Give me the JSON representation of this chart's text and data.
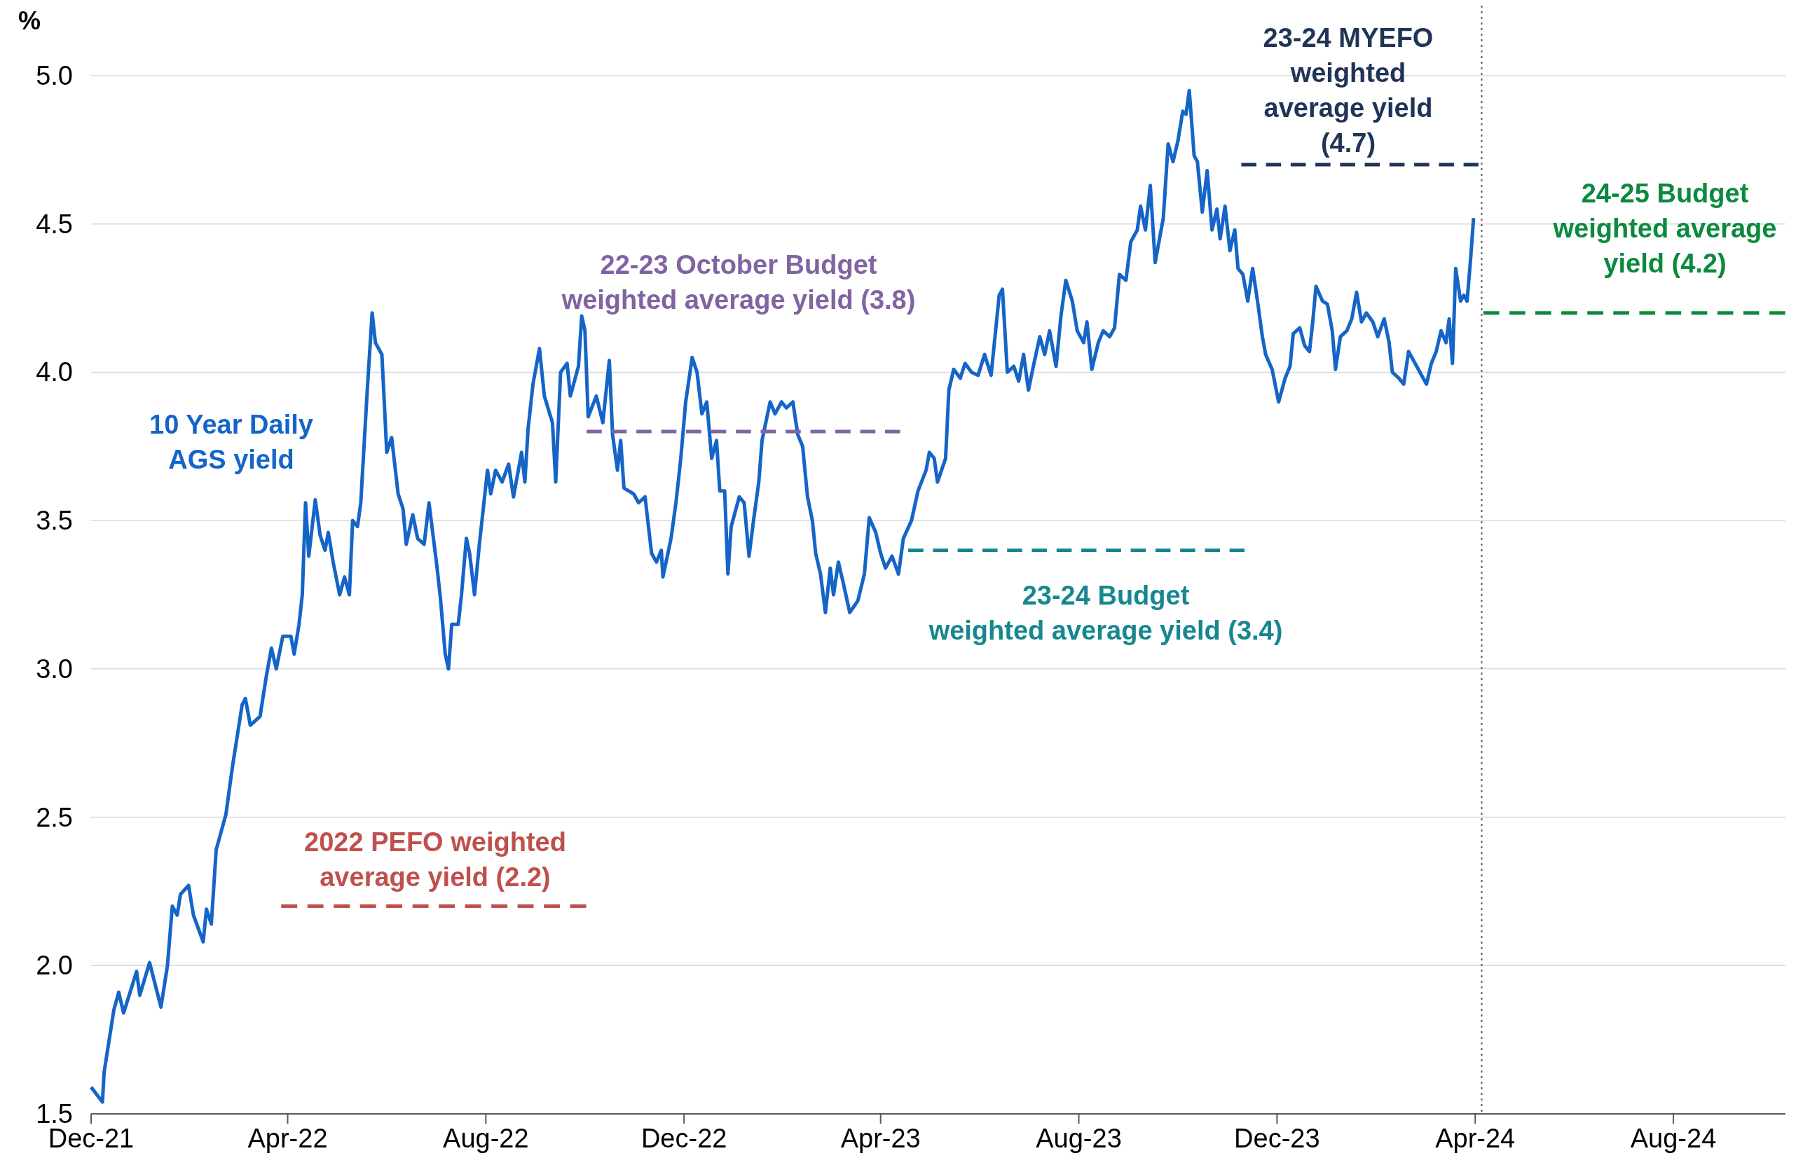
{
  "chart_data": {
    "type": "line",
    "ylabel": "%",
    "xlim": [
      "2021-12-01",
      "2024-10-09"
    ],
    "ylim": [
      1.5,
      5.0
    ],
    "xticks": [
      {
        "value": "2021-12-01",
        "label": "Dec-21"
      },
      {
        "value": "2022-04-01",
        "label": "Apr-22"
      },
      {
        "value": "2022-08-01",
        "label": "Aug-22"
      },
      {
        "value": "2022-12-01",
        "label": "Dec-22"
      },
      {
        "value": "2023-04-01",
        "label": "Apr-23"
      },
      {
        "value": "2023-08-01",
        "label": "Aug-23"
      },
      {
        "value": "2023-12-01",
        "label": "Dec-23"
      },
      {
        "value": "2024-04-01",
        "label": "Apr-24"
      },
      {
        "value": "2024-08-01",
        "label": "Aug-24"
      }
    ],
    "yticks": [
      {
        "value": 1.5,
        "label": "1.5"
      },
      {
        "value": 2.0,
        "label": "2.0"
      },
      {
        "value": 2.5,
        "label": "2.5"
      },
      {
        "value": 3.0,
        "label": "3.0"
      },
      {
        "value": 3.5,
        "label": "3.5"
      },
      {
        "value": 4.0,
        "label": "4.0"
      },
      {
        "value": 4.5,
        "label": "4.5"
      },
      {
        "value": 5.0,
        "label": "5.0"
      }
    ],
    "grid": "y",
    "ref_lines": [
      {
        "axis": "x",
        "value": "2024-04-05",
        "color": "#595959",
        "line_style": "dotted"
      }
    ],
    "series": [
      {
        "name": "10 Year Daily\nAGS yield",
        "color": "#1565c8",
        "line_style": "solid",
        "x": [
          "2021-12-01",
          "2021-12-08",
          "2021-12-09",
          "2021-12-15",
          "2021-12-18",
          "2021-12-21",
          "2021-12-29",
          "2021-12-31",
          "2022-01-06",
          "2022-01-13",
          "2022-01-17",
          "2022-01-20",
          "2022-01-23",
          "2022-01-25",
          "2022-01-30",
          "2022-02-02",
          "2022-02-08",
          "2022-02-10",
          "2022-02-13",
          "2022-02-16",
          "2022-02-22",
          "2022-02-26",
          "2022-03-04",
          "2022-03-06",
          "2022-03-09",
          "2022-03-15",
          "2022-03-19",
          "2022-03-22",
          "2022-03-25",
          "2022-03-29",
          "2022-04-03",
          "2022-04-05",
          "2022-04-08",
          "2022-04-10",
          "2022-04-12",
          "2022-04-14",
          "2022-04-18",
          "2022-04-21",
          "2022-04-24",
          "2022-04-26",
          "2022-04-29",
          "2022-05-03",
          "2022-05-06",
          "2022-05-09",
          "2022-05-11",
          "2022-05-14",
          "2022-05-16",
          "2022-05-20",
          "2022-05-23",
          "2022-05-25",
          "2022-05-29",
          "2022-06-01",
          "2022-06-04",
          "2022-06-08",
          "2022-06-11",
          "2022-06-13",
          "2022-06-17",
          "2022-06-20",
          "2022-06-24",
          "2022-06-27",
          "2022-07-02",
          "2022-07-04",
          "2022-07-07",
          "2022-07-09",
          "2022-07-11",
          "2022-07-15",
          "2022-07-17",
          "2022-07-20",
          "2022-07-22",
          "2022-07-25",
          "2022-07-28",
          "2022-08-02",
          "2022-08-04",
          "2022-08-07",
          "2022-08-11",
          "2022-08-15",
          "2022-08-18",
          "2022-08-23",
          "2022-08-25",
          "2022-08-27",
          "2022-08-30",
          "2022-09-03",
          "2022-09-06",
          "2022-09-11",
          "2022-09-13",
          "2022-09-16",
          "2022-09-20",
          "2022-09-22",
          "2022-09-27",
          "2022-09-29",
          "2022-10-01",
          "2022-10-03",
          "2022-10-08",
          "2022-10-12",
          "2022-10-16",
          "2022-10-18",
          "2022-10-21",
          "2022-10-23",
          "2022-10-25",
          "2022-10-31",
          "2022-11-03",
          "2022-11-07",
          "2022-11-11",
          "2022-11-14",
          "2022-11-17",
          "2022-11-18",
          "2022-11-23",
          "2022-11-26",
          "2022-11-29",
          "2022-12-02",
          "2022-12-06",
          "2022-12-09",
          "2022-12-12",
          "2022-12-15",
          "2022-12-18",
          "2022-12-21",
          "2022-12-23",
          "2022-12-26",
          "2022-12-28",
          "2022-12-30",
          "2023-01-04",
          "2023-01-07",
          "2023-01-10",
          "2023-01-13",
          "2023-01-16",
          "2023-01-18",
          "2023-01-23",
          "2023-01-26",
          "2023-01-30",
          "2023-02-02",
          "2023-02-06",
          "2023-02-09",
          "2023-02-12",
          "2023-02-15",
          "2023-02-18",
          "2023-02-20",
          "2023-02-23",
          "2023-02-26",
          "2023-03-01",
          "2023-03-03",
          "2023-03-06",
          "2023-03-09",
          "2023-03-13",
          "2023-03-18",
          "2023-03-22",
          "2023-03-25",
          "2023-03-29",
          "2023-04-01",
          "2023-04-04",
          "2023-04-08",
          "2023-04-12",
          "2023-04-15",
          "2023-04-20",
          "2023-04-24",
          "2023-04-29",
          "2023-05-01",
          "2023-05-04",
          "2023-05-06",
          "2023-05-11",
          "2023-05-13",
          "2023-05-16",
          "2023-05-20",
          "2023-05-23",
          "2023-05-27",
          "2023-05-31",
          "2023-06-04",
          "2023-06-08",
          "2023-06-13",
          "2023-06-15",
          "2023-06-18",
          "2023-06-22",
          "2023-06-25",
          "2023-06-28",
          "2023-07-01",
          "2023-07-04",
          "2023-07-08",
          "2023-07-11",
          "2023-07-14",
          "2023-07-18",
          "2023-07-21",
          "2023-07-24",
          "2023-07-28",
          "2023-07-31",
          "2023-08-04",
          "2023-08-06",
          "2023-08-09",
          "2023-08-13",
          "2023-08-16",
          "2023-08-20",
          "2023-08-23",
          "2023-08-26",
          "2023-08-30",
          "2023-09-02",
          "2023-09-06",
          "2023-09-08",
          "2023-09-11",
          "2023-09-14",
          "2023-09-17",
          "2023-09-20",
          "2023-09-22",
          "2023-09-25",
          "2023-09-28",
          "2023-10-01",
          "2023-10-04",
          "2023-10-06",
          "2023-10-08",
          "2023-10-11",
          "2023-10-13",
          "2023-10-16",
          "2023-10-19",
          "2023-10-22",
          "2023-10-25",
          "2023-10-27",
          "2023-10-30",
          "2023-11-02",
          "2023-11-05",
          "2023-11-07",
          "2023-11-10",
          "2023-11-13",
          "2023-11-16",
          "2023-11-19",
          "2023-11-22",
          "2023-11-24",
          "2023-11-28",
          "2023-12-02",
          "2023-12-06",
          "2023-12-09",
          "2023-12-11",
          "2023-12-15",
          "2023-12-18",
          "2023-12-21",
          "2023-12-23",
          "2023-12-25",
          "2023-12-29",
          "2024-01-01",
          "2024-01-04",
          "2024-01-06",
          "2024-01-09",
          "2024-01-13",
          "2024-01-16",
          "2024-01-19",
          "2024-01-22",
          "2024-01-25",
          "2024-01-29",
          "2024-02-01",
          "2024-02-05",
          "2024-02-08",
          "2024-02-10",
          "2024-02-14",
          "2024-02-17",
          "2024-02-20",
          "2024-02-24",
          "2024-02-27",
          "2024-03-02",
          "2024-03-05",
          "2024-03-08",
          "2024-03-11",
          "2024-03-14",
          "2024-03-16",
          "2024-03-18",
          "2024-03-20",
          "2024-03-23",
          "2024-03-25",
          "2024-03-27",
          "2024-03-29",
          "2024-03-31"
        ],
        "values": [
          1.59,
          1.54,
          1.64,
          1.85,
          1.91,
          1.84,
          1.98,
          1.9,
          2.01,
          1.86,
          2.0,
          2.2,
          2.17,
          2.24,
          2.27,
          2.17,
          2.08,
          2.19,
          2.14,
          2.39,
          2.51,
          2.67,
          2.88,
          2.9,
          2.81,
          2.84,
          2.98,
          3.07,
          3.0,
          3.11,
          3.11,
          3.05,
          3.15,
          3.25,
          3.56,
          3.38,
          3.57,
          3.45,
          3.4,
          3.46,
          3.36,
          3.25,
          3.31,
          3.25,
          3.5,
          3.48,
          3.56,
          3.94,
          4.2,
          4.1,
          4.06,
          3.73,
          3.78,
          3.59,
          3.54,
          3.42,
          3.52,
          3.44,
          3.42,
          3.56,
          3.34,
          3.24,
          3.05,
          3.0,
          3.15,
          3.15,
          3.25,
          3.44,
          3.39,
          3.25,
          3.42,
          3.67,
          3.59,
          3.67,
          3.63,
          3.69,
          3.58,
          3.73,
          3.63,
          3.81,
          3.96,
          4.08,
          3.92,
          3.83,
          3.63,
          4.0,
          4.03,
          3.92,
          4.02,
          4.19,
          4.14,
          3.85,
          3.92,
          3.83,
          4.04,
          3.79,
          3.67,
          3.77,
          3.61,
          3.59,
          3.56,
          3.58,
          3.39,
          3.36,
          3.4,
          3.31,
          3.44,
          3.56,
          3.71,
          3.9,
          4.05,
          4.0,
          3.86,
          3.9,
          3.71,
          3.77,
          3.6,
          3.6,
          3.32,
          3.48,
          3.58,
          3.56,
          3.38,
          3.51,
          3.63,
          3.77,
          3.9,
          3.86,
          3.9,
          3.88,
          3.9,
          3.79,
          3.75,
          3.58,
          3.5,
          3.39,
          3.32,
          3.19,
          3.34,
          3.25,
          3.36,
          3.29,
          3.19,
          3.23,
          3.32,
          3.51,
          3.46,
          3.39,
          3.34,
          3.38,
          3.32,
          3.44,
          3.5,
          3.6,
          3.67,
          3.73,
          3.71,
          3.63,
          3.71,
          3.94,
          4.01,
          3.98,
          4.03,
          4.0,
          3.99,
          4.06,
          3.99,
          4.26,
          4.28,
          4.0,
          4.02,
          3.97,
          4.06,
          3.94,
          4.02,
          4.12,
          4.06,
          4.14,
          4.02,
          4.19,
          4.31,
          4.24,
          4.14,
          4.1,
          4.17,
          4.01,
          4.1,
          4.14,
          4.12,
          4.15,
          4.33,
          4.31,
          4.44,
          4.48,
          4.56,
          4.48,
          4.63,
          4.37,
          4.46,
          4.52,
          4.77,
          4.71,
          4.78,
          4.88,
          4.87,
          4.95,
          4.73,
          4.71,
          4.54,
          4.68,
          4.48,
          4.55,
          4.45,
          4.56,
          4.41,
          4.48,
          4.35,
          4.33,
          4.24,
          4.35,
          4.24,
          4.12,
          4.06,
          4.01,
          3.9,
          3.98,
          4.02,
          4.13,
          4.15,
          4.09,
          4.07,
          4.17,
          4.29,
          4.24,
          4.23,
          4.14,
          4.01,
          4.12,
          4.14,
          4.18,
          4.27,
          4.17,
          4.2,
          4.17,
          4.12,
          4.18,
          4.1,
          4.0,
          3.98,
          3.96,
          4.07,
          4.03,
          4.0,
          3.96,
          4.03,
          4.07,
          4.14,
          4.1,
          4.18,
          4.03,
          4.35,
          4.24,
          4.26,
          4.24,
          4.37,
          4.52
        ]
      },
      {
        "name": "2022 PEFO weighted\naverage yield (2.2)",
        "color": "#c0504d",
        "line_style": "dashed",
        "x": [
          "2022-03-28",
          "2022-10-02"
        ],
        "values": [
          2.2,
          2.2
        ]
      },
      {
        "name": "22-23 October Budget\nweighted average yield (3.8)",
        "color": "#8064a2",
        "line_style": "dashed",
        "x": [
          "2022-10-02",
          "2023-04-13"
        ],
        "values": [
          3.8,
          3.8
        ]
      },
      {
        "name": "23-24 Budget\nweighted average yield (3.4)",
        "color": "#17878f",
        "line_style": "dashed",
        "x": [
          "2023-04-18",
          "2023-11-11"
        ],
        "values": [
          3.4,
          3.4
        ]
      },
      {
        "name": "23-24 MYEFO\nweighted\naverage yield\n(4.7)",
        "color": "#1f3457",
        "line_style": "dashed",
        "x": [
          "2023-11-09",
          "2024-04-03"
        ],
        "values": [
          4.7,
          4.7
        ]
      },
      {
        "name": "24-25 Budget\nweighted average\nyield (4.2)",
        "color": "#0b8a3c",
        "line_style": "dashed",
        "x": [
          "2024-04-06",
          "2024-10-09"
        ],
        "values": [
          4.2,
          4.2
        ]
      }
    ]
  }
}
